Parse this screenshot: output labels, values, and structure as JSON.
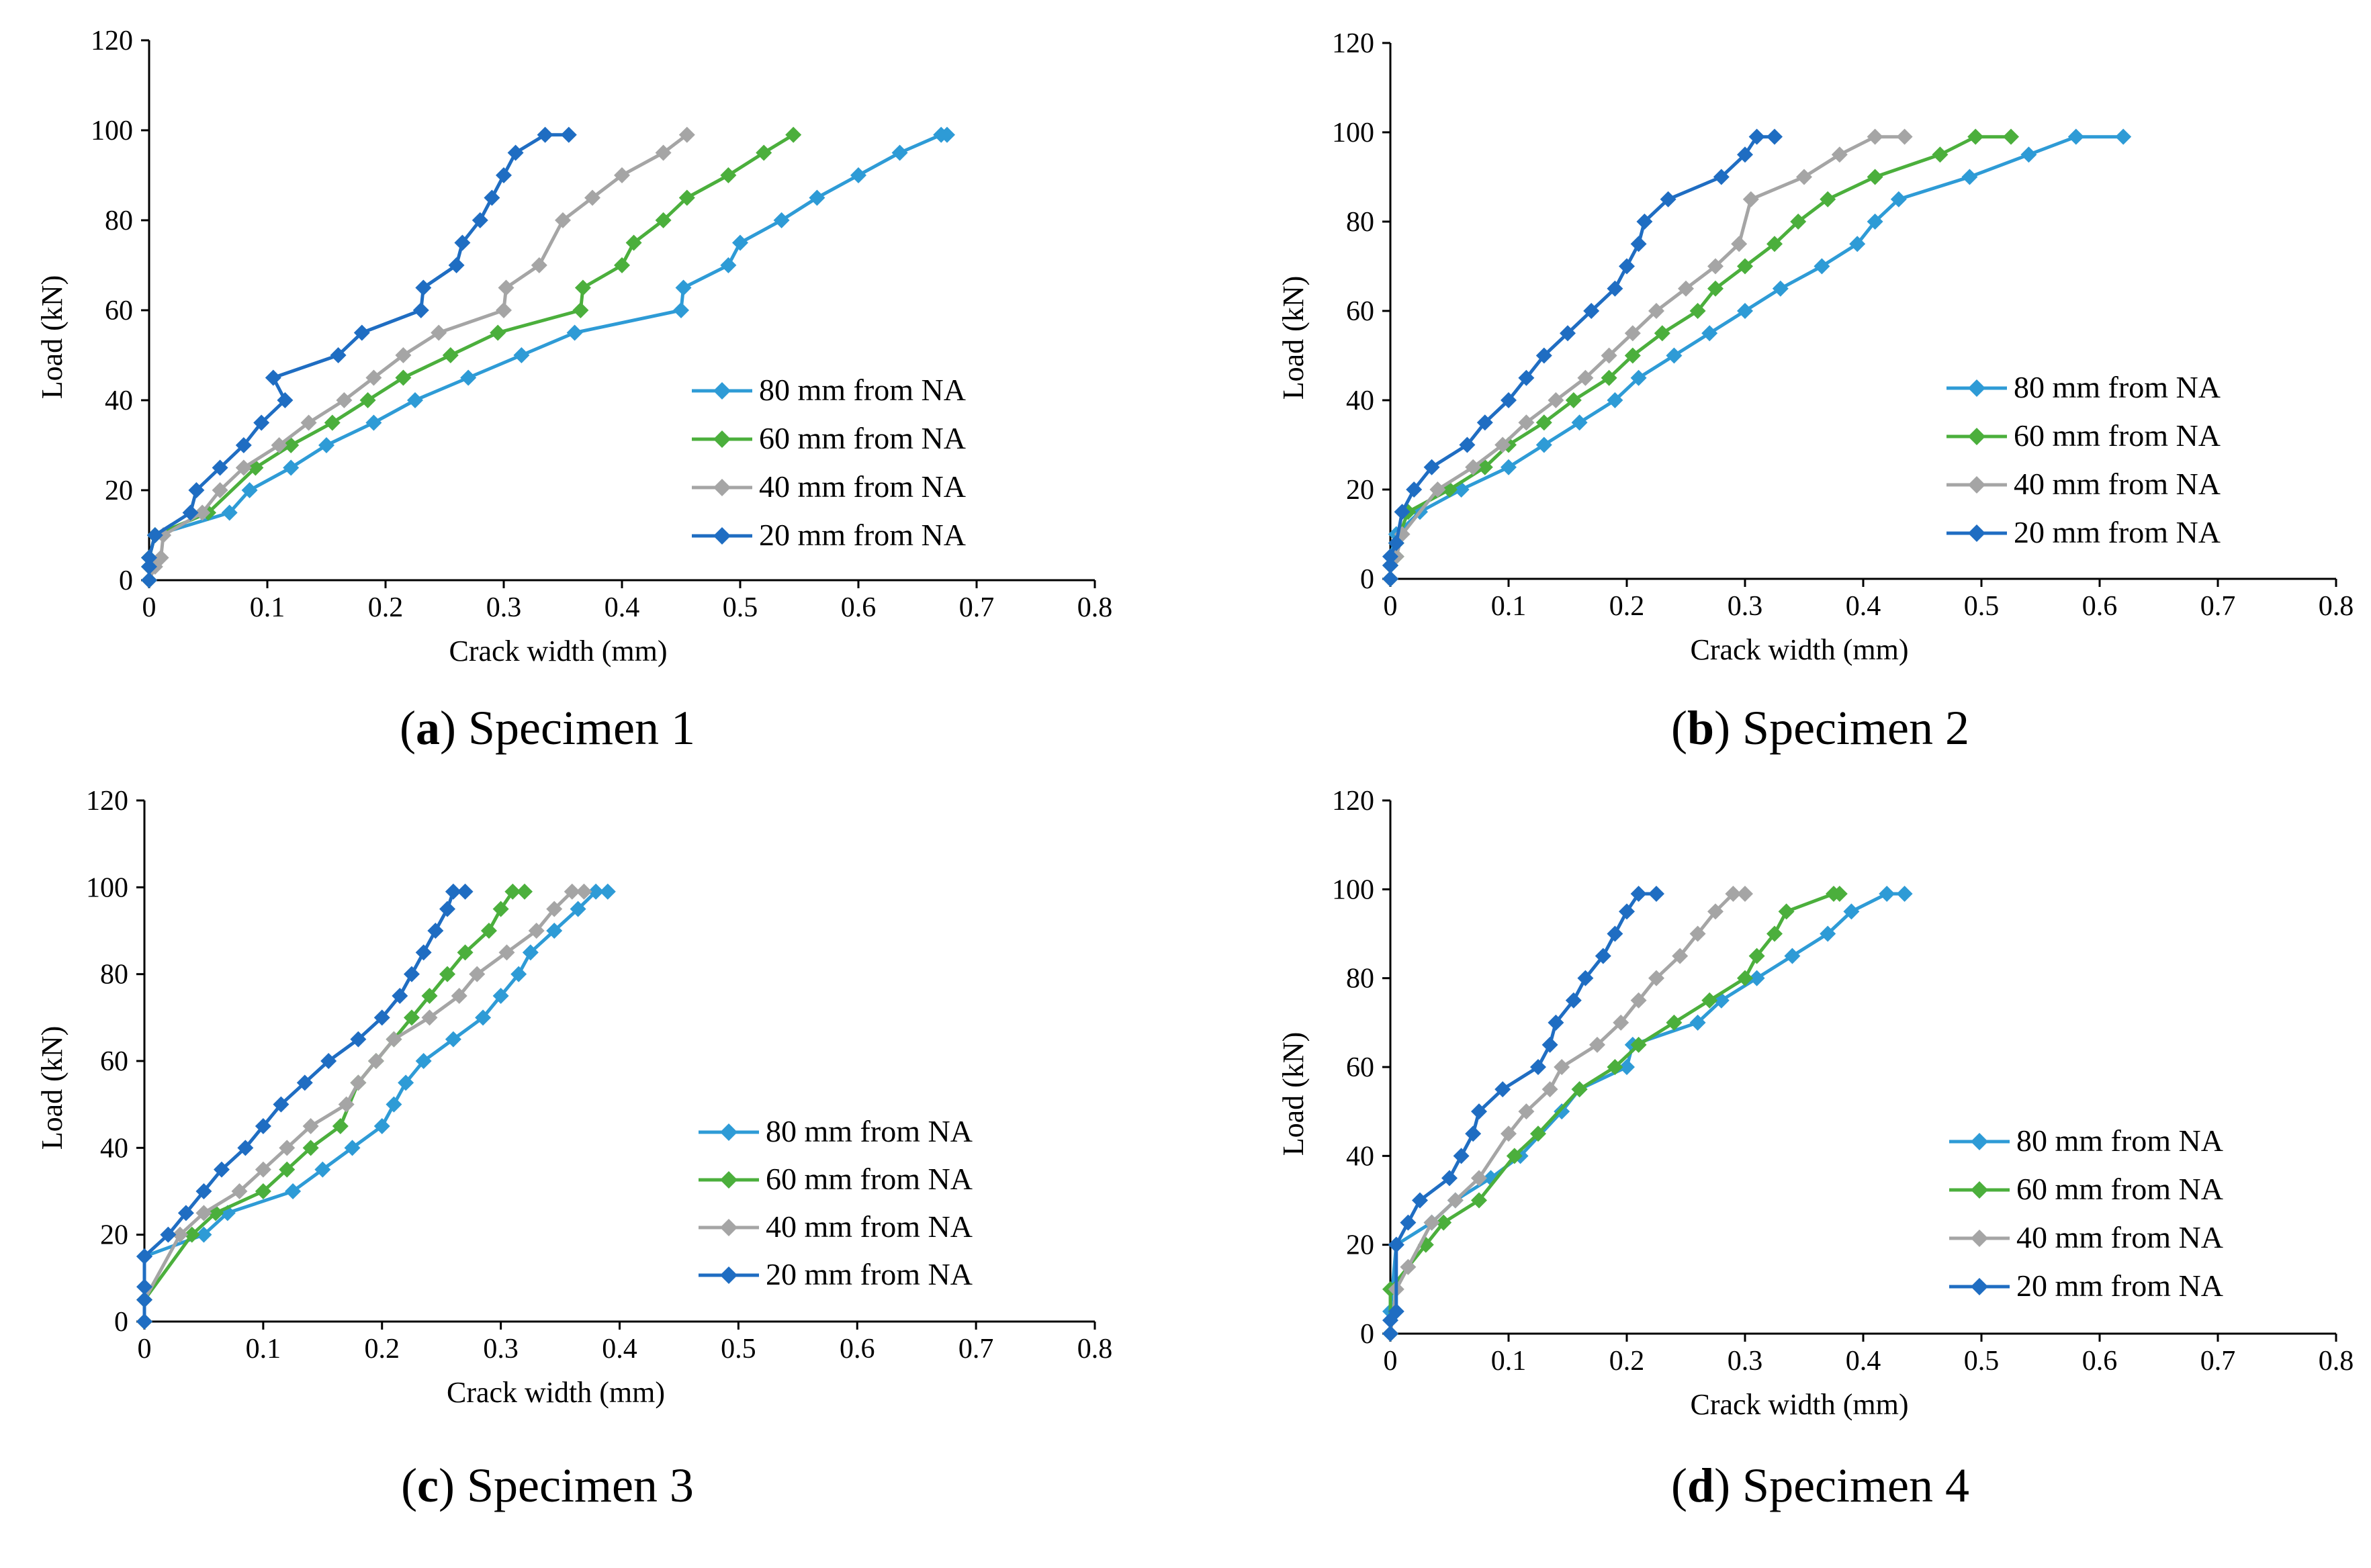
{
  "figure": {
    "captions": [
      {
        "open": "(",
        "letter": "a",
        "close": ")",
        "text": " Specimen 1"
      },
      {
        "open": "(",
        "letter": "b",
        "close": ")",
        "text": " Specimen 2"
      },
      {
        "open": "(",
        "letter": "c",
        "close": ")",
        "text": " Specimen 3"
      },
      {
        "open": "(",
        "letter": "d",
        "close": ")",
        "text": " Specimen 4"
      }
    ]
  },
  "chart_data": [
    {
      "type": "line",
      "title": "Specimen 1",
      "xlabel": "Crack width (mm)",
      "ylabel": "Load (kN)",
      "xlim": [
        0,
        0.8
      ],
      "ylim": [
        0,
        120
      ],
      "xticks": [
        "0",
        "0.1",
        "0.2",
        "0.3",
        "0.4",
        "0.5",
        "0.6",
        "0.7",
        "0.8"
      ],
      "yticks": [
        "0",
        "20",
        "40",
        "60",
        "80",
        "100",
        "120"
      ],
      "legend_position": "right",
      "series": [
        {
          "name": "80 mm from NA",
          "color": "#2E9BD6",
          "x": [
            0,
            0,
            0,
            0.005,
            0.068,
            0.085,
            0.12,
            0.15,
            0.19,
            0.225,
            0.27,
            0.315,
            0.36,
            0.45,
            0.452,
            0.49,
            0.5,
            0.535,
            0.565,
            0.6,
            0.635,
            0.67,
            0.675
          ],
          "y": [
            0,
            3,
            5,
            10,
            15,
            20,
            25,
            30,
            35,
            40,
            45,
            50,
            55,
            60,
            65,
            70,
            75,
            80,
            85,
            90,
            95,
            99,
            99
          ]
        },
        {
          "name": "60 mm from NA",
          "color": "#4BAF3C",
          "x": [
            0,
            0,
            0,
            0.005,
            0.05,
            0.09,
            0.12,
            0.155,
            0.185,
            0.215,
            0.255,
            0.295,
            0.365,
            0.367,
            0.4,
            0.41,
            0.435,
            0.455,
            0.49,
            0.52,
            0.545
          ],
          "y": [
            0,
            3,
            5,
            10,
            15,
            25,
            30,
            35,
            40,
            45,
            50,
            55,
            60,
            65,
            70,
            75,
            80,
            85,
            90,
            95,
            99
          ]
        },
        {
          "name": "40 mm from NA",
          "color": "#A5A5A5",
          "x": [
            0,
            0.005,
            0.01,
            0.012,
            0.045,
            0.06,
            0.08,
            0.11,
            0.135,
            0.165,
            0.19,
            0.215,
            0.245,
            0.3,
            0.302,
            0.33,
            0.35,
            0.375,
            0.4,
            0.435,
            0.455
          ],
          "y": [
            0,
            3,
            5,
            10,
            15,
            20,
            25,
            30,
            35,
            40,
            45,
            50,
            55,
            60,
            65,
            70,
            80,
            85,
            90,
            95,
            99
          ]
        },
        {
          "name": "20 mm from NA",
          "color": "#1F6DC2",
          "x": [
            0,
            0,
            0,
            0.005,
            0.035,
            0.04,
            0.06,
            0.08,
            0.095,
            0.115,
            0.105,
            0.16,
            0.18,
            0.23,
            0.232,
            0.26,
            0.265,
            0.28,
            0.29,
            0.3,
            0.31,
            0.335,
            0.355
          ],
          "y": [
            0,
            3,
            5,
            10,
            15,
            20,
            25,
            30,
            35,
            40,
            45,
            50,
            55,
            60,
            65,
            70,
            75,
            80,
            85,
            90,
            95,
            99,
            99
          ]
        }
      ]
    },
    {
      "type": "line",
      "title": "Specimen 2",
      "xlabel": "Crack width (mm)",
      "ylabel": "Load (kN)",
      "xlim": [
        0,
        0.8
      ],
      "ylim": [
        0,
        120
      ],
      "xticks": [
        "0",
        "0.1",
        "0.2",
        "0.3",
        "0.4",
        "0.5",
        "0.6",
        "0.7",
        "0.8"
      ],
      "yticks": [
        "0",
        "20",
        "40",
        "60",
        "80",
        "100",
        "120"
      ],
      "legend_position": "right",
      "series": [
        {
          "name": "80 mm from NA",
          "color": "#2E9BD6",
          "x": [
            0,
            0,
            0,
            0.005,
            0.025,
            0.06,
            0.1,
            0.13,
            0.16,
            0.19,
            0.21,
            0.24,
            0.27,
            0.3,
            0.33,
            0.365,
            0.395,
            0.41,
            0.43,
            0.49,
            0.54,
            0.58,
            0.62
          ],
          "y": [
            0,
            3,
            5,
            10,
            15,
            20,
            25,
            30,
            35,
            40,
            45,
            50,
            55,
            60,
            65,
            70,
            75,
            80,
            85,
            90,
            95,
            99,
            99
          ]
        },
        {
          "name": "60 mm from NA",
          "color": "#4BAF3C",
          "x": [
            0,
            0,
            0.005,
            0.005,
            0.015,
            0.05,
            0.08,
            0.1,
            0.13,
            0.155,
            0.185,
            0.205,
            0.23,
            0.26,
            0.275,
            0.3,
            0.325,
            0.345,
            0.37,
            0.41,
            0.465,
            0.495,
            0.525
          ],
          "y": [
            0,
            3,
            5,
            8,
            15,
            20,
            25,
            30,
            35,
            40,
            45,
            50,
            55,
            60,
            65,
            70,
            75,
            80,
            85,
            90,
            95,
            99,
            99
          ]
        },
        {
          "name": "40 mm from NA",
          "color": "#A5A5A5",
          "x": [
            0,
            0,
            0.005,
            0.01,
            0.04,
            0.07,
            0.095,
            0.115,
            0.14,
            0.165,
            0.185,
            0.205,
            0.225,
            0.25,
            0.275,
            0.295,
            0.305,
            0.35,
            0.38,
            0.41,
            0.435
          ],
          "y": [
            0,
            3,
            5,
            10,
            20,
            25,
            30,
            35,
            40,
            45,
            50,
            55,
            60,
            65,
            70,
            75,
            85,
            90,
            95,
            99,
            99
          ]
        },
        {
          "name": "20 mm from NA",
          "color": "#1F6DC2",
          "x": [
            0,
            0,
            0,
            0.005,
            0.01,
            0.02,
            0.035,
            0.065,
            0.08,
            0.1,
            0.115,
            0.13,
            0.15,
            0.17,
            0.19,
            0.2,
            0.21,
            0.215,
            0.235,
            0.28,
            0.3,
            0.31,
            0.325
          ],
          "y": [
            0,
            3,
            5,
            8,
            15,
            20,
            25,
            30,
            35,
            40,
            45,
            50,
            55,
            60,
            65,
            70,
            75,
            80,
            85,
            90,
            95,
            99,
            99
          ]
        }
      ]
    },
    {
      "type": "line",
      "title": "Specimen 3",
      "xlabel": "Crack width (mm)",
      "ylabel": "Load (kN)",
      "xlim": [
        0,
        0.8
      ],
      "ylim": [
        0,
        120
      ],
      "xticks": [
        "0",
        "0.1",
        "0.2",
        "0.3",
        "0.4",
        "0.5",
        "0.6",
        "0.7",
        "0.8"
      ],
      "yticks": [
        "0",
        "20",
        "40",
        "60",
        "80",
        "100",
        "120"
      ],
      "legend_position": "right",
      "series": [
        {
          "name": "80 mm from NA",
          "color": "#2E9BD6",
          "x": [
            0,
            0,
            0.05,
            0.07,
            0.125,
            0.15,
            0.175,
            0.2,
            0.21,
            0.22,
            0.235,
            0.26,
            0.285,
            0.3,
            0.315,
            0.325,
            0.345,
            0.365,
            0.38,
            0.39
          ],
          "y": [
            0,
            15,
            20,
            25,
            30,
            35,
            40,
            45,
            50,
            55,
            60,
            65,
            70,
            75,
            80,
            85,
            90,
            95,
            99,
            99
          ]
        },
        {
          "name": "60 mm from NA",
          "color": "#4BAF3C",
          "x": [
            0,
            0,
            0.04,
            0.06,
            0.1,
            0.12,
            0.14,
            0.165,
            0.18,
            0.195,
            0.21,
            0.225,
            0.24,
            0.255,
            0.27,
            0.29,
            0.3,
            0.31,
            0.32
          ],
          "y": [
            0,
            5,
            20,
            25,
            30,
            35,
            40,
            45,
            55,
            60,
            65,
            70,
            75,
            80,
            85,
            90,
            95,
            99,
            99
          ]
        },
        {
          "name": "40 mm from NA",
          "color": "#A5A5A5",
          "x": [
            0,
            0,
            0.03,
            0.05,
            0.08,
            0.1,
            0.12,
            0.14,
            0.17,
            0.18,
            0.195,
            0.21,
            0.24,
            0.265,
            0.28,
            0.305,
            0.33,
            0.345,
            0.36,
            0.37
          ],
          "y": [
            0,
            5,
            20,
            25,
            30,
            35,
            40,
            45,
            50,
            55,
            60,
            65,
            70,
            75,
            80,
            85,
            90,
            95,
            99,
            99
          ]
        },
        {
          "name": "20 mm from NA",
          "color": "#1F6DC2",
          "x": [
            0,
            0,
            0,
            0,
            0.02,
            0.035,
            0.05,
            0.065,
            0.085,
            0.1,
            0.115,
            0.135,
            0.155,
            0.18,
            0.2,
            0.215,
            0.225,
            0.235,
            0.245,
            0.255,
            0.26,
            0.27
          ],
          "y": [
            0,
            5,
            8,
            15,
            20,
            25,
            30,
            35,
            40,
            45,
            50,
            55,
            60,
            65,
            70,
            75,
            80,
            85,
            90,
            95,
            99,
            99
          ]
        }
      ]
    },
    {
      "type": "line",
      "title": "Specimen 4",
      "xlabel": "Crack width (mm)",
      "ylabel": "Load (kN)",
      "xlim": [
        0,
        0.8
      ],
      "ylim": [
        0,
        120
      ],
      "xticks": [
        "0",
        "0.1",
        "0.2",
        "0.3",
        "0.4",
        "0.5",
        "0.6",
        "0.7",
        "0.8"
      ],
      "yticks": [
        "0",
        "20",
        "40",
        "60",
        "80",
        "100",
        "120"
      ],
      "legend_position": "right",
      "series": [
        {
          "name": "80 mm from NA",
          "color": "#2E9BD6",
          "x": [
            0,
            0,
            0.005,
            0.035,
            0.055,
            0.085,
            0.11,
            0.145,
            0.16,
            0.2,
            0.205,
            0.26,
            0.28,
            0.31,
            0.34,
            0.37,
            0.39,
            0.42,
            0.435
          ],
          "y": [
            0,
            5,
            20,
            25,
            30,
            35,
            40,
            50,
            55,
            60,
            65,
            70,
            75,
            80,
            85,
            90,
            95,
            99,
            99
          ]
        },
        {
          "name": "60 mm from NA",
          "color": "#4BAF3C",
          "x": [
            0,
            0,
            0.03,
            0.045,
            0.075,
            0.105,
            0.125,
            0.16,
            0.19,
            0.21,
            0.24,
            0.27,
            0.3,
            0.31,
            0.325,
            0.335,
            0.375,
            0.38
          ],
          "y": [
            0,
            10,
            20,
            25,
            30,
            40,
            45,
            55,
            60,
            65,
            70,
            75,
            80,
            85,
            90,
            95,
            99,
            99
          ]
        },
        {
          "name": "40 mm from NA",
          "color": "#A5A5A5",
          "x": [
            0,
            0.005,
            0.015,
            0.035,
            0.055,
            0.075,
            0.1,
            0.115,
            0.135,
            0.145,
            0.175,
            0.195,
            0.21,
            0.225,
            0.245,
            0.26,
            0.275,
            0.29,
            0.3
          ],
          "y": [
            0,
            10,
            15,
            25,
            30,
            35,
            45,
            50,
            55,
            60,
            65,
            70,
            75,
            80,
            85,
            90,
            95,
            99,
            99
          ]
        },
        {
          "name": "20 mm from NA",
          "color": "#1F6DC2",
          "x": [
            0,
            0,
            0.005,
            0.005,
            0.015,
            0.025,
            0.05,
            0.06,
            0.07,
            0.075,
            0.095,
            0.125,
            0.135,
            0.14,
            0.155,
            0.165,
            0.18,
            0.19,
            0.2,
            0.21,
            0.225
          ],
          "y": [
            0,
            3,
            5,
            20,
            25,
            30,
            35,
            40,
            45,
            50,
            55,
            60,
            65,
            70,
            75,
            80,
            85,
            90,
            95,
            99,
            99
          ]
        }
      ]
    }
  ]
}
